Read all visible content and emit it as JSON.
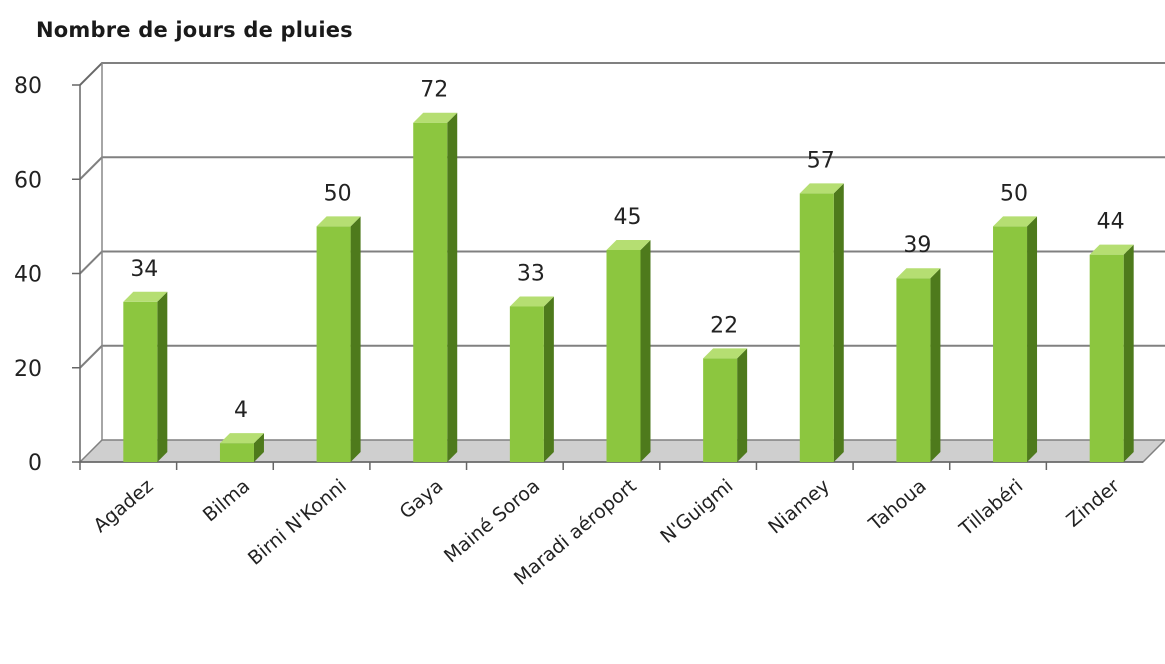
{
  "chart_data": {
    "type": "bar",
    "title": "Nombre de jours de pluies",
    "xlabel": "",
    "ylabel": "",
    "categories": [
      "Agadez",
      "Bilma",
      "Birni N'Konni",
      "Gaya",
      "Mainé Soroa",
      "Maradi aéroport",
      "N'Guigmi",
      "Niamey",
      "Tahoua",
      "Tillabéri",
      "Zinder"
    ],
    "values": [
      34,
      4,
      50,
      72,
      33,
      45,
      22,
      57,
      39,
      50,
      44
    ],
    "data_labels": [
      "34",
      "4",
      "50",
      "72",
      "33",
      "45",
      "22",
      "57",
      "39",
      "50",
      "44"
    ],
    "ylim": [
      0,
      80
    ],
    "yticks": [
      "0",
      "20",
      "40",
      "60",
      "80"
    ],
    "grid": true,
    "legend": "none",
    "bar_color": "#8cc63f",
    "bar_side_color": "#4e7a1c",
    "bar_top_color": "#b5de72",
    "floor_color": "#cfcfcf",
    "gridline_color": "#808080"
  }
}
